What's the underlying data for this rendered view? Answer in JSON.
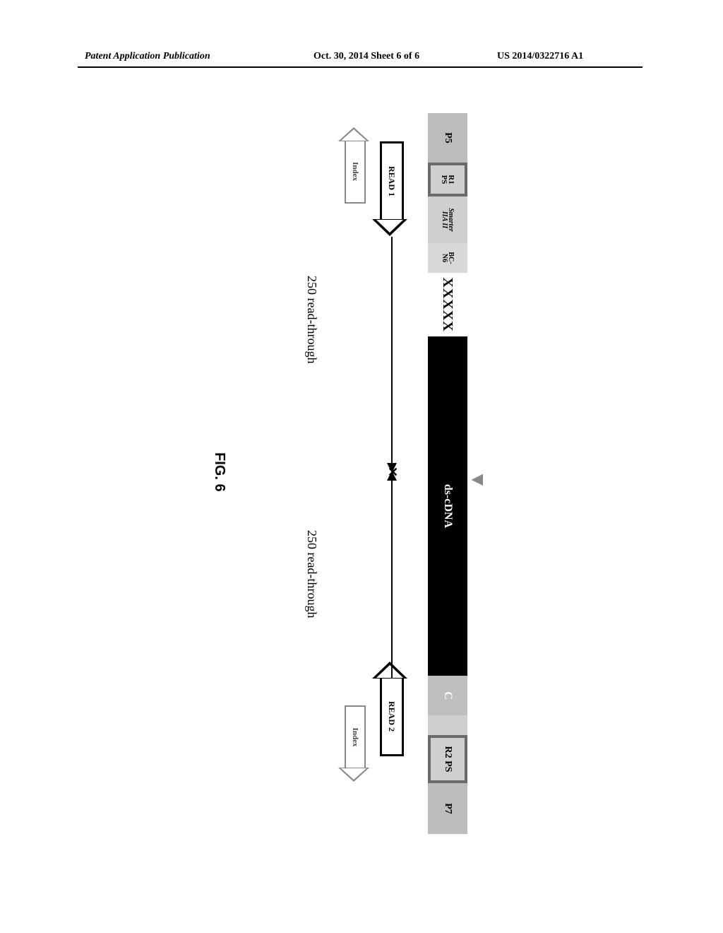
{
  "header": {
    "left": "Patent Application Publication",
    "mid": "Oct. 30, 2014   Sheet 6 of 6",
    "right": "US 2014/0322716 A1"
  },
  "bar": {
    "p5": "P5",
    "r1ps_line1": "R1",
    "r1ps_line2": "PS",
    "smarter_line1": "Smarter",
    "smarter_line2": "IIA II",
    "bcn6_line1": "BC-",
    "bcn6_line2": "N6",
    "xxxxx": "XXXXX",
    "dscDNA": "ds-cDNA",
    "c": "C",
    "r2ps": "R2 PS",
    "p7": "P7"
  },
  "reads": {
    "read1": "READ 1",
    "read2": "READ 2",
    "index": "Index"
  },
  "readthrough": {
    "left": "250 read-through",
    "right": "250 read-through"
  },
  "figure_label": "FIG. 6",
  "colors": {
    "gray_seg": "#bcbcbc",
    "lightgray_seg": "#cfcfcf",
    "outline": "#6a6a6a",
    "black": "#000000",
    "midgray": "#bfbfbf"
  }
}
